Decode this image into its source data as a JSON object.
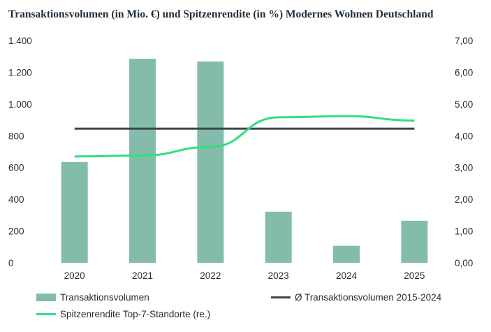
{
  "chart_data": {
    "type": "bar",
    "title": "Transaktionsvolumen (in Mio. €) und Spitzenrendite (in %) Modernes Wohnen Deutschland",
    "categories": [
      "2020",
      "2021",
      "2022",
      "2023",
      "2024",
      "2025"
    ],
    "series": [
      {
        "name": "Transaktionsvolumen",
        "kind": "bar",
        "axis": "left",
        "values": [
          635,
          1285,
          1268,
          322,
          107,
          265
        ],
        "color": "#84bcab"
      },
      {
        "name": "Ø Transaktionsvolumen 2015-2024",
        "kind": "line",
        "axis": "left",
        "values": [
          845,
          845,
          845,
          845,
          845,
          845
        ],
        "color": "#3b464d"
      },
      {
        "name": "Spitzenrendite Top-7-Standorte (re.)",
        "kind": "line",
        "axis": "right",
        "values": [
          3.35,
          3.38,
          3.65,
          4.58,
          4.62,
          4.48
        ],
        "color": "#2ee07f"
      }
    ],
    "y_left": {
      "ylim": [
        0,
        1400
      ],
      "ticks": [
        0,
        200,
        400,
        600,
        800,
        1000,
        1200,
        1400
      ],
      "tick_labels": [
        "0",
        "200",
        "400",
        "600",
        "800",
        "1.000",
        "1.200",
        "1.400"
      ]
    },
    "y_right": {
      "ylim": [
        0,
        7
      ],
      "ticks": [
        0,
        1,
        2,
        3,
        4,
        5,
        6,
        7
      ],
      "tick_labels": [
        "0,00",
        "1,00",
        "2,00",
        "3,00",
        "4,00",
        "5,00",
        "6,00",
        "7,00"
      ]
    },
    "grid": false,
    "legend_position": "bottom"
  }
}
